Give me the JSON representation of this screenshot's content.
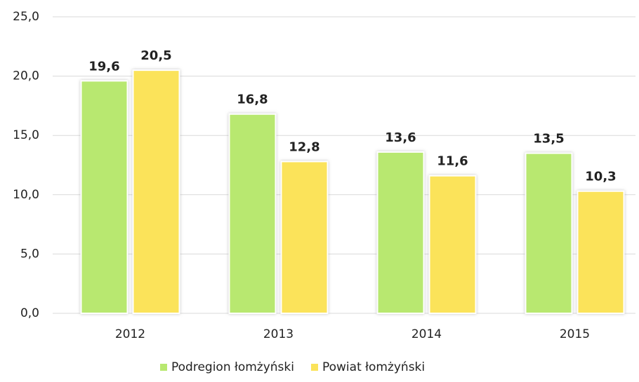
{
  "chart_data": {
    "type": "bar",
    "categories": [
      "2012",
      "2013",
      "2014",
      "2015"
    ],
    "series": [
      {
        "name": "Podregion łomżyński",
        "color": "#b8e870",
        "values": [
          19.6,
          16.8,
          13.6,
          13.5
        ],
        "value_labels": [
          "19,6",
          "16,8",
          "13,6",
          "13,5"
        ]
      },
      {
        "name": "Powiat łomżyński",
        "color": "#fbe35a",
        "values": [
          20.5,
          12.8,
          11.6,
          10.3
        ],
        "value_labels": [
          "20,5",
          "12,8",
          "11,6",
          "10,3"
        ]
      }
    ],
    "ylim": [
      0,
      25
    ],
    "yticks": [
      {
        "value": 0,
        "label": "0,0"
      },
      {
        "value": 5,
        "label": "5,0"
      },
      {
        "value": 10,
        "label": "10,0"
      },
      {
        "value": 15,
        "label": "15,0"
      },
      {
        "value": 20,
        "label": "20,0"
      },
      {
        "value": 25,
        "label": "25,0"
      }
    ],
    "grid": true,
    "legend": "bottom"
  }
}
